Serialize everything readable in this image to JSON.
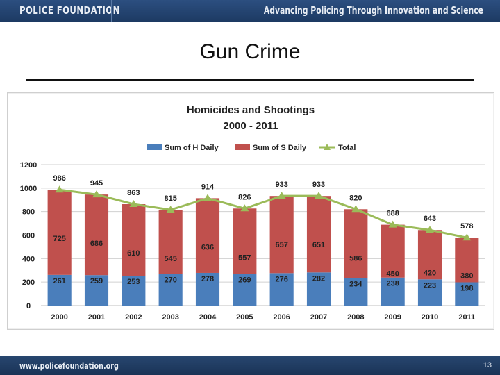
{
  "header": {
    "brand": "POLICE FOUNDATION",
    "tagline": "Advancing Policing Through  Innovation and Science"
  },
  "slide": {
    "title": "Gun Crime",
    "page_number": "13"
  },
  "footer": {
    "url": "www.policefoundation.org"
  },
  "chart_data": {
    "type": "bar",
    "title": "Homicides and Shootings",
    "subtitle": "2000 - 2011",
    "categories": [
      "2000",
      "2001",
      "2002",
      "2003",
      "2004",
      "2005",
      "2006",
      "2007",
      "2008",
      "2009",
      "2010",
      "2011"
    ],
    "series": [
      {
        "name": "Sum of H Daily",
        "kind": "bar",
        "stacked": true,
        "color": "#4a7ebb",
        "values": [
          261,
          259,
          253,
          270,
          278,
          269,
          276,
          282,
          234,
          238,
          223,
          198
        ]
      },
      {
        "name": "Sum of S Daily",
        "kind": "bar",
        "stacked": true,
        "color": "#c0504d",
        "values": [
          725,
          686,
          610,
          545,
          636,
          557,
          657,
          651,
          586,
          450,
          420,
          380
        ]
      },
      {
        "name": "Total",
        "kind": "line",
        "color": "#9bbb59",
        "values": [
          986,
          945,
          863,
          815,
          914,
          826,
          933,
          933,
          820,
          688,
          643,
          578
        ]
      }
    ],
    "yticks": [
      "0",
      "200",
      "400",
      "600",
      "800",
      "1000",
      "1200"
    ],
    "ylim": [
      0,
      1200
    ],
    "grid": true,
    "legend_position": "top"
  }
}
